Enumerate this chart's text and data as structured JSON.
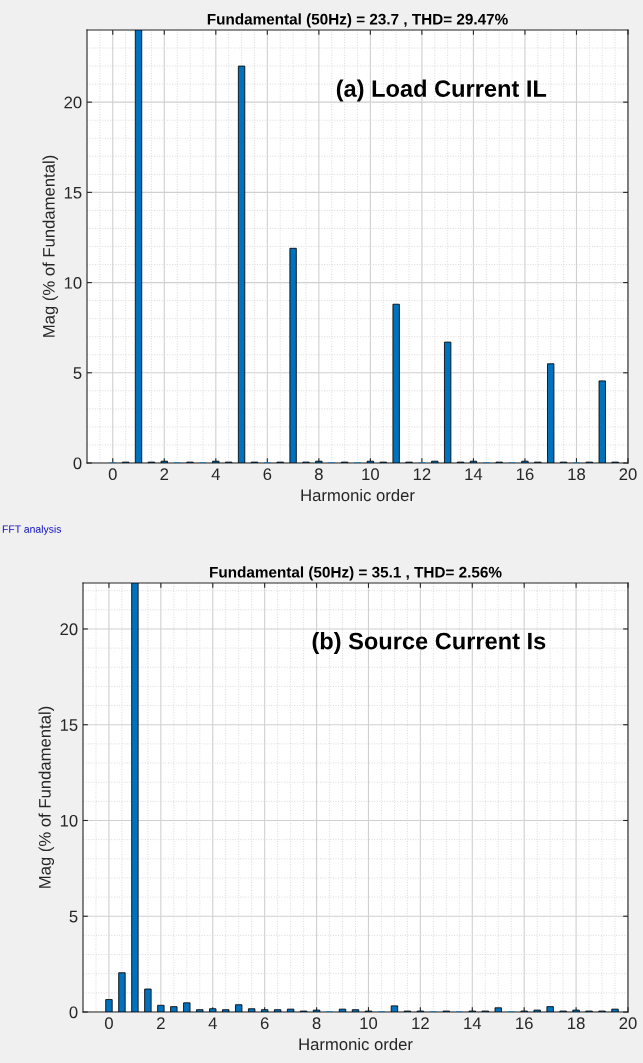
{
  "chart_data": [
    {
      "type": "bar",
      "title": "Fundamental (50Hz) = 23.7 , THD= 29.47%",
      "xlabel": "Harmonic order",
      "ylabel": "Mag (% of Fundamental)",
      "annotations": [
        "(a) Load Current IL",
        "FFT analysis"
      ],
      "x": [
        0,
        0.5,
        1,
        1.5,
        2,
        2.5,
        3,
        3.5,
        4,
        4.5,
        5,
        5.5,
        6,
        6.5,
        7,
        7.5,
        8,
        8.5,
        9,
        9.5,
        10,
        10.5,
        11,
        11.5,
        12,
        12.5,
        13,
        13.5,
        14,
        14.5,
        15,
        15.5,
        16,
        16.5,
        17,
        17.5,
        18,
        18.5,
        19,
        19.5
      ],
      "values": [
        0,
        0.05,
        24,
        0.05,
        0.1,
        0,
        0.05,
        0,
        0.1,
        0.05,
        22,
        0.05,
        0,
        0.05,
        11.9,
        0.05,
        0.1,
        0,
        0.05,
        0,
        0.1,
        0.05,
        8.8,
        0.05,
        0,
        0.1,
        6.7,
        0.05,
        0.1,
        0,
        0.05,
        0,
        0.1,
        0.05,
        5.5,
        0.05,
        0,
        0.05,
        4.55,
        0.05
      ],
      "color": "#0072bd",
      "xlim": [
        -1,
        20
      ],
      "ylim": [
        0,
        24
      ],
      "xticks": [
        0,
        2,
        4,
        6,
        8,
        10,
        12,
        14,
        16,
        18,
        20
      ],
      "yticks": [
        0,
        5,
        10,
        15,
        20
      ],
      "grid": true
    },
    {
      "type": "bar",
      "title": "Fundamental (50Hz) = 35.1 , THD= 2.56%",
      "xlabel": "Harmonic order",
      "ylabel": "Mag (% of Fundamental)",
      "annotations": [
        "(b) Source Current Is"
      ],
      "x": [
        0,
        0.5,
        1,
        1.5,
        2,
        2.5,
        3,
        3.5,
        4,
        4.5,
        5,
        5.5,
        6,
        6.5,
        7,
        7.5,
        8,
        8.5,
        9,
        9.5,
        10,
        10.5,
        11,
        11.5,
        12,
        12.5,
        13,
        13.5,
        14,
        14.5,
        15,
        15.5,
        16,
        16.5,
        17,
        17.5,
        18,
        18.5,
        19,
        19.5
      ],
      "values": [
        0.65,
        2.05,
        22.4,
        1.2,
        0.35,
        0.28,
        0.48,
        0.12,
        0.17,
        0.12,
        0.38,
        0.17,
        0.12,
        0.12,
        0.15,
        0.05,
        0.1,
        0,
        0.15,
        0.12,
        0.05,
        0,
        0.32,
        0.05,
        0.05,
        0,
        0.05,
        0,
        0.05,
        0.05,
        0.22,
        0,
        0.05,
        0.1,
        0.28,
        0.05,
        0.1,
        0.05,
        0.05,
        0.15
      ],
      "color": "#0072bd",
      "xlim": [
        -1,
        20
      ],
      "ylim": [
        0,
        22.4
      ],
      "xticks": [
        0,
        2,
        4,
        6,
        8,
        10,
        12,
        14,
        16,
        18,
        20
      ],
      "yticks": [
        0,
        5,
        10,
        15,
        20
      ],
      "grid": true
    }
  ]
}
